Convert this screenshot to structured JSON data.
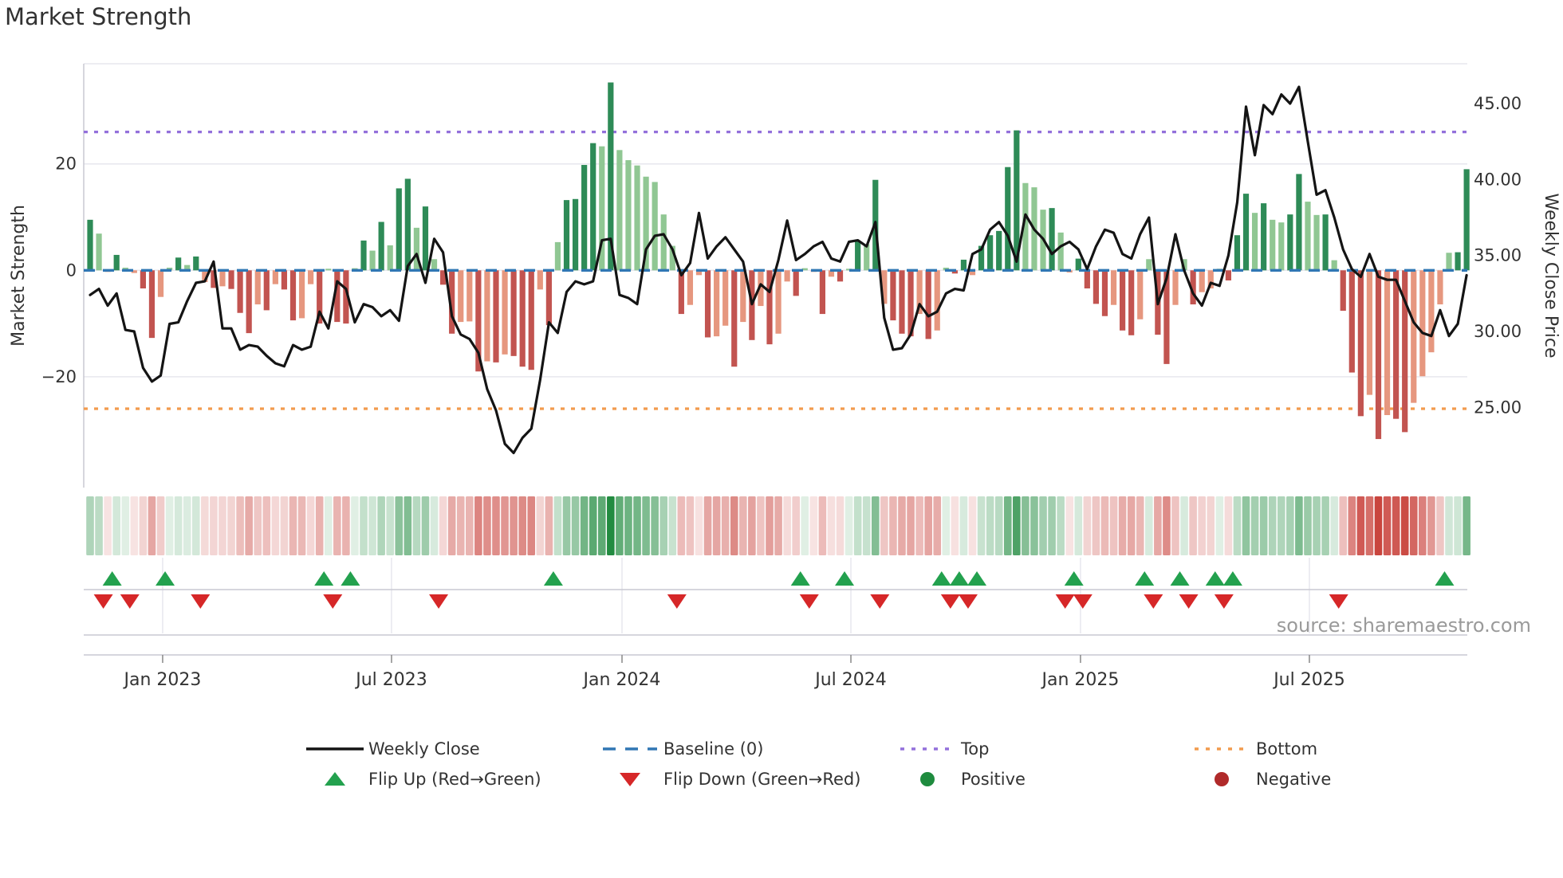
{
  "title": "Market Strength",
  "source_note": "source: sharemaestro.com",
  "left_axis": {
    "label": "Market Strength",
    "tick_labels": [
      "20",
      "0",
      "−20"
    ],
    "tick_values": [
      20,
      0,
      -20
    ]
  },
  "right_axis": {
    "label": "Weekly Close Price",
    "tick_labels": [
      "45.00",
      "40.00",
      "35.00",
      "30.00",
      "25.00"
    ],
    "tick_values": [
      45,
      40,
      35,
      30,
      25
    ]
  },
  "x_axis": {
    "tick_labels": [
      "Jan 2023",
      "Jul 2023",
      "Jan 2024",
      "Jul 2024",
      "Jan 2025",
      "Jul 2025"
    ],
    "tick_weeks": [
      8.22,
      34.16,
      60.28,
      86.22,
      112.24,
      138.18
    ]
  },
  "reference_lines": {
    "baseline": {
      "label": "Baseline (0)",
      "value": 0,
      "color": "#3077b4"
    },
    "top": {
      "label": "Top",
      "value": 26,
      "color": "#9370db"
    },
    "bottom": {
      "label": "Bottom",
      "value": -26,
      "color": "#f29b4e"
    }
  },
  "legend": {
    "row1": [
      {
        "label": "Weekly Close",
        "swatch": "line-black"
      },
      {
        "label": "Baseline (0)",
        "swatch": "dash-blue"
      },
      {
        "label": "Top",
        "swatch": "dot-purple"
      },
      {
        "label": "Bottom",
        "swatch": "dot-orange"
      }
    ],
    "row2": [
      {
        "label": "Flip Up (Red→Green)",
        "swatch": "tri-up-green"
      },
      {
        "label": "Flip Down (Green→Red)",
        "swatch": "tri-down-red"
      },
      {
        "label": "Positive",
        "swatch": "circle-green"
      },
      {
        "label": "Negative",
        "swatch": "circle-darkred"
      }
    ]
  },
  "colors": {
    "bar_pos_strong": "#2e8b57",
    "bar_pos_weak": "#90c793",
    "bar_neg_strong": "#c25450",
    "bar_neg_weak": "#e6977f",
    "line": "#141414",
    "baseline": "#3077b4",
    "top_line": "#9370db",
    "bottom_line": "#f29b4e",
    "flip_up": "#23a14e",
    "flip_down": "#d62728",
    "legend_pos_dot": "#1e8b3e",
    "legend_neg_dot": "#b02a2a",
    "grid": "#e7e7ee",
    "spine": "#c9c9d2",
    "tick_text": "#3a3a3a"
  },
  "chart_data": {
    "type": "combo",
    "x_unit": "week",
    "n_weeks": 157,
    "series": [
      {
        "name": "Market Strength",
        "type": "bar",
        "axis": "left",
        "ylim": [
          -35,
          37
        ],
        "values": [
          9.5,
          6.9,
          -0.3,
          2.9,
          0.5,
          -0.5,
          -3.4,
          -12.7,
          -5.0,
          0.5,
          2.4,
          1.0,
          2.6,
          -2.2,
          -3.3,
          -3.0,
          -3.5,
          -8.0,
          -11.8,
          -6.4,
          -7.5,
          -2.6,
          -3.6,
          -9.4,
          -9.0,
          -2.6,
          -10.0,
          0.3,
          -9.7,
          -10.0,
          0.4,
          5.6,
          3.7,
          9.1,
          4.7,
          15.4,
          17.2,
          8.0,
          12.0,
          2.1,
          -2.7,
          -11.9,
          -9.7,
          -9.6,
          -19.0,
          -17.1,
          -17.3,
          -15.8,
          -16.1,
          -18.1,
          -18.7,
          -3.6,
          -10.3,
          5.3,
          13.2,
          13.4,
          19.8,
          23.9,
          23.3,
          35.3,
          22.6,
          20.7,
          19.7,
          17.6,
          16.6,
          10.5,
          4.6,
          -8.2,
          -6.5,
          -0.9,
          -12.6,
          -12.4,
          -10.4,
          -18.1,
          -9.7,
          -13.1,
          -6.7,
          -13.9,
          -11.9,
          -2.1,
          -4.8,
          0.4,
          -0.3,
          -8.2,
          -1.2,
          -2.1,
          0.3,
          5.5,
          4.9,
          17.0,
          -6.3,
          -9.4,
          -11.9,
          -12.4,
          -8.2,
          -12.9,
          -11.3,
          0.5,
          -0.6,
          2.0,
          -0.9,
          4.6,
          6.6,
          7.4,
          19.4,
          26.3,
          16.4,
          15.6,
          11.4,
          11.7,
          7.1,
          -0.4,
          2.2,
          -3.4,
          -6.3,
          -8.6,
          -6.5,
          -11.3,
          -12.2,
          -9.2,
          2.1,
          -12.1,
          -17.6,
          -6.5,
          2.1,
          -6.4,
          -4.1,
          -3.4,
          0.3,
          -1.9,
          6.6,
          14.4,
          10.8,
          12.6,
          9.5,
          9.0,
          10.5,
          18.1,
          12.9,
          10.4,
          10.5,
          1.9,
          -7.6,
          -19.2,
          -27.4,
          -23.4,
          -31.7,
          -27.2,
          -27.9,
          -30.4,
          -24.9,
          -19.9,
          -15.4,
          -6.4,
          3.3,
          3.4,
          19.0
        ]
      },
      {
        "name": "Weekly Close",
        "type": "line",
        "axis": "right",
        "ylim": [
          20.5,
          47.5
        ],
        "values": [
          32.4,
          32.8,
          31.7,
          32.5,
          30.1,
          30.0,
          27.6,
          26.7,
          27.1,
          30.5,
          30.6,
          32.0,
          33.2,
          33.3,
          34.6,
          30.2,
          30.2,
          28.8,
          29.1,
          29.0,
          28.4,
          27.9,
          27.7,
          29.1,
          28.8,
          29.0,
          31.3,
          30.2,
          33.3,
          32.8,
          30.6,
          31.8,
          31.6,
          31.0,
          31.4,
          30.7,
          34.3,
          35.1,
          33.2,
          36.1,
          35.2,
          31.0,
          29.8,
          29.5,
          28.6,
          26.2,
          24.8,
          22.6,
          22.0,
          23.0,
          23.6,
          26.8,
          30.6,
          29.9,
          32.6,
          33.3,
          33.1,
          33.3,
          36.0,
          36.1,
          32.4,
          32.2,
          31.8,
          35.4,
          36.3,
          36.4,
          35.4,
          33.7,
          34.5,
          37.8,
          34.8,
          35.6,
          36.2,
          35.4,
          34.6,
          31.8,
          33.1,
          32.6,
          34.7,
          37.3,
          34.7,
          35.1,
          35.6,
          35.9,
          34.8,
          34.6,
          35.9,
          36.0,
          35.6,
          37.2,
          30.9,
          28.8,
          28.9,
          29.8,
          31.8,
          31.0,
          31.3,
          32.5,
          32.8,
          32.7,
          35.1,
          35.4,
          36.7,
          37.2,
          36.3,
          34.6,
          37.7,
          36.7,
          36.1,
          35.1,
          35.6,
          35.9,
          35.4,
          34.1,
          35.6,
          36.7,
          36.5,
          35.1,
          34.8,
          36.4,
          37.5,
          31.8,
          33.5,
          36.4,
          34.0,
          32.5,
          31.7,
          33.2,
          33.0,
          35.0,
          38.5,
          44.8,
          41.6,
          44.9,
          44.3,
          45.6,
          45.0,
          46.1,
          42.5,
          39.0,
          39.3,
          37.5,
          35.4,
          34.1,
          33.6,
          35.1,
          33.6,
          33.4,
          33.4,
          32.0,
          30.6,
          29.9,
          29.7,
          31.4,
          29.7,
          30.5,
          33.7
        ]
      },
      {
        "name": "Heatmap strip",
        "type": "heatmap",
        "derived_from": "Market Strength"
      }
    ],
    "flip_up_weeks": [
      3,
      9,
      27,
      30,
      53,
      81,
      86,
      97,
      99,
      101,
      112,
      120,
      124,
      128,
      130,
      154
    ],
    "flip_down_weeks": [
      2,
      5,
      13,
      28,
      40,
      67,
      82,
      90,
      98,
      100,
      111,
      113,
      121,
      125,
      129,
      142
    ],
    "grid": "horizontal-only",
    "legend_position": "bottom-center"
  }
}
